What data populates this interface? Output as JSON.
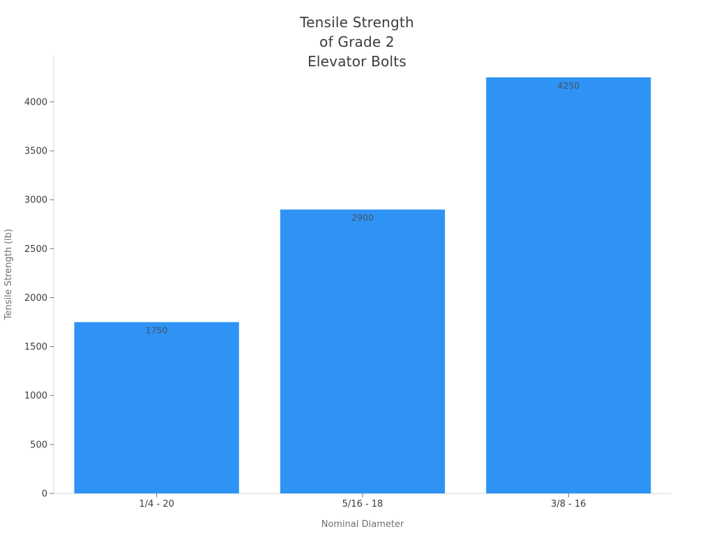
{
  "chart_data": {
    "type": "bar",
    "title": "Tensile Strength\nof Grade 2\nElevator Bolts",
    "categories": [
      "1/4 - 20",
      "5/16 - 18",
      "3/8 - 16"
    ],
    "values": [
      1750,
      2900,
      4250
    ],
    "bar_value_labels": [
      "1750",
      "2900",
      "4250"
    ],
    "xlabel": "Nominal Diameter",
    "ylabel": "Tensile Strength (lb)",
    "yticks": [
      0,
      500,
      1000,
      1500,
      2000,
      2500,
      3000,
      3500,
      4000
    ],
    "ylim": [
      0,
      4470
    ],
    "bar_width_fraction": 0.8,
    "grid": false,
    "legend": "none",
    "colors": {
      "bar": "#2e93f5",
      "title_text": "#3b3b3b",
      "tick_text": "#3b3b3b",
      "axis_label_text": "#707070",
      "bar_label_text": "#445261",
      "spine": "#d6d6d6",
      "tick_mark": "#6e6e6e",
      "background": "#ffffff"
    }
  }
}
